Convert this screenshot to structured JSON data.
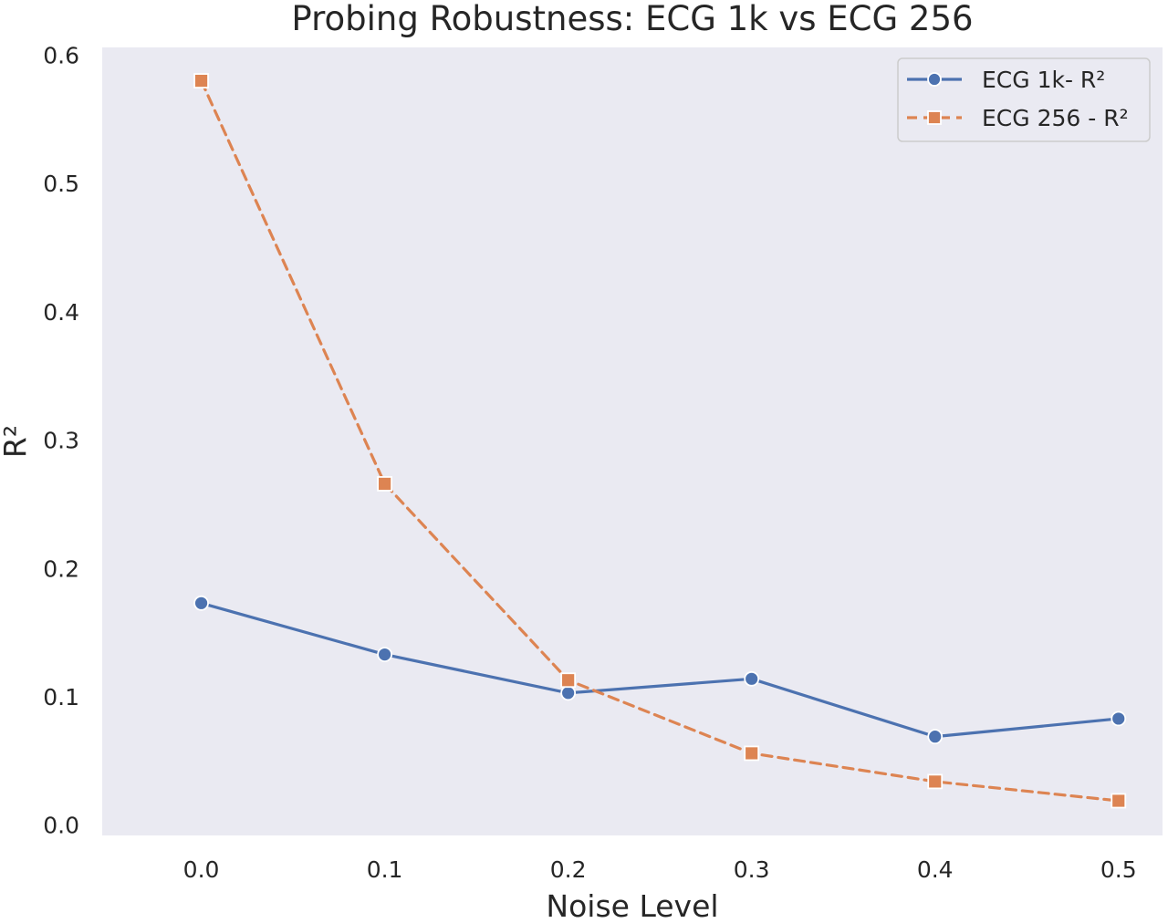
{
  "chart_data": {
    "type": "line",
    "title": "Probing Robustness: ECG 1k vs ECG 256",
    "xlabel": "Noise Level",
    "ylabel": "R²",
    "x": [
      0.0,
      0.1,
      0.2,
      0.3,
      0.4,
      0.5
    ],
    "x_tick_labels": [
      "0.0",
      "0.1",
      "0.2",
      "0.3",
      "0.4",
      "0.5"
    ],
    "y_ticks": [
      0.0,
      0.1,
      0.2,
      0.3,
      0.4,
      0.5,
      0.6
    ],
    "y_tick_labels": [
      "0.0",
      "0.1",
      "0.2",
      "0.3",
      "0.4",
      "0.5",
      "0.6"
    ],
    "xlim": [
      -0.054,
      0.524
    ],
    "ylim": [
      -0.008,
      0.606
    ],
    "grid": false,
    "legend_position": "top-right",
    "background_color": "#eaeaf2",
    "series": [
      {
        "name": "ECG 1k- R²",
        "values": [
          0.173,
          0.133,
          0.103,
          0.114,
          0.069,
          0.083
        ],
        "color": "#4c72b0",
        "line_style": "solid",
        "marker": "circle"
      },
      {
        "name": "ECG 256 - R²",
        "values": [
          0.58,
          0.266,
          0.113,
          0.056,
          0.034,
          0.019
        ],
        "color": "#dd8452",
        "line_style": "dashed",
        "marker": "square"
      }
    ]
  }
}
